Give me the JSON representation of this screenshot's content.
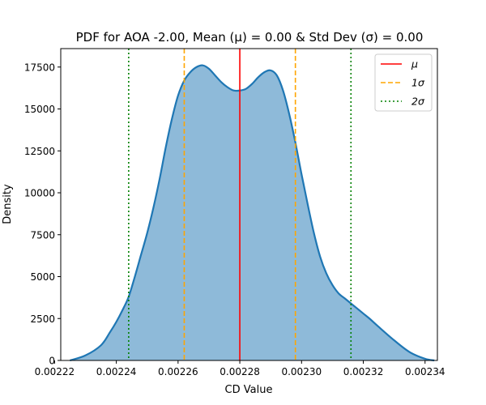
{
  "chart_data": {
    "type": "area",
    "title": "PDF for AOA -2.00, Mean (μ) = 0.00 & Std Dev (σ) = 0.00",
    "xlabel": "CD Value",
    "ylabel": "Density",
    "xlim": [
      0.002222,
      0.002344
    ],
    "ylim": [
      0,
      18600
    ],
    "x_ticks": [
      0.00222,
      0.00224,
      0.00226,
      0.00228,
      0.0023,
      0.00232,
      0.00234
    ],
    "x_tick_labels": [
      "0.00222",
      "0.00224",
      "0.00226",
      "0.00228",
      "0.00230",
      "0.00232",
      "0.00234"
    ],
    "y_ticks": [
      0,
      2500,
      5000,
      7500,
      10000,
      12500,
      15000,
      17500
    ],
    "y_tick_labels": [
      "0",
      "2500",
      "5000",
      "7500",
      "10000",
      "12500",
      "15000",
      "17500"
    ],
    "grid": false,
    "legend_position": "top-right",
    "series": [
      {
        "kind": "density",
        "color": "#1f77b4",
        "fill_color": "#8ebad9",
        "x": [
          0.002225,
          0.00223,
          0.002235,
          0.002238,
          0.00224,
          0.002242,
          0.002244,
          0.002246,
          0.002248,
          0.00225,
          0.002252,
          0.002254,
          0.002256,
          0.002258,
          0.00226,
          0.002262,
          0.002264,
          0.002266,
          0.002268,
          0.00227,
          0.002272,
          0.002274,
          0.002276,
          0.002278,
          0.00228,
          0.002282,
          0.002284,
          0.002286,
          0.002288,
          0.00229,
          0.002292,
          0.002294,
          0.002296,
          0.002298,
          0.0023,
          0.002302,
          0.002304,
          0.002306,
          0.002308,
          0.00231,
          0.002312,
          0.002314,
          0.002316,
          0.002318,
          0.00232,
          0.002322,
          0.002325,
          0.00233,
          0.002335,
          0.00234,
          0.002343
        ],
        "y": [
          0,
          300,
          900,
          1700,
          2300,
          3000,
          3800,
          5000,
          6300,
          7600,
          9100,
          10800,
          12700,
          14400,
          15800,
          16700,
          17200,
          17500,
          17600,
          17400,
          17000,
          16600,
          16300,
          16100,
          16100,
          16200,
          16500,
          16900,
          17200,
          17300,
          17000,
          16100,
          14700,
          13000,
          11100,
          9300,
          7600,
          6200,
          5200,
          4500,
          4000,
          3700,
          3400,
          3100,
          2800,
          2500,
          2000,
          1200,
          500,
          100,
          0
        ]
      }
    ],
    "reference_lines": [
      {
        "label": "μ",
        "x": 0.00228,
        "color": "#ff0000",
        "style": "solid"
      },
      {
        "label": "1σ",
        "x": 0.002262,
        "color": "#ffa500",
        "style": "dashed"
      },
      {
        "label": "1σ",
        "x": 0.002298,
        "color": "#ffa500",
        "style": "dashed",
        "in_legend": false
      },
      {
        "label": "2σ",
        "x": 0.002244,
        "color": "#008000",
        "style": "dotted"
      },
      {
        "label": "2σ",
        "x": 0.002316,
        "color": "#008000",
        "style": "dotted",
        "in_legend": false
      }
    ],
    "legend": [
      {
        "label": "μ",
        "color": "#ff0000",
        "style": "solid"
      },
      {
        "label": "1σ",
        "color": "#ffa500",
        "style": "dashed"
      },
      {
        "label": "2σ",
        "color": "#008000",
        "style": "dotted"
      }
    ]
  }
}
